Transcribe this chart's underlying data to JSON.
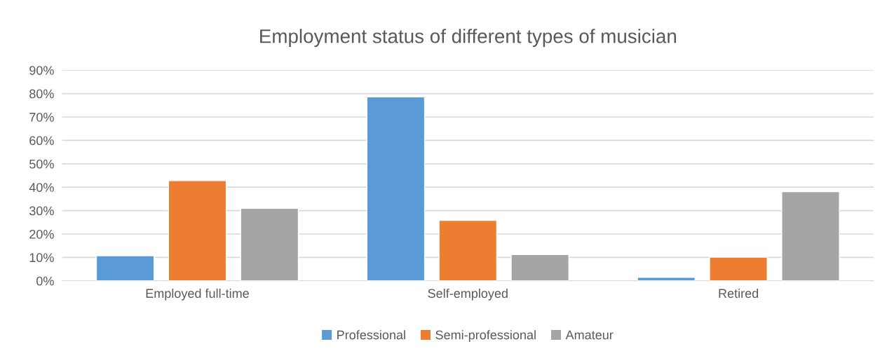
{
  "chart_data": {
    "type": "bar",
    "title": "Employment status of different types of musician",
    "categories": [
      "Employed full-time",
      "Self-employed",
      "Retired"
    ],
    "series": [
      {
        "name": "Professional",
        "color": "#5b9bd5",
        "values": [
          10.7,
          78.6,
          1.5
        ]
      },
      {
        "name": "Semi-professional",
        "color": "#ed7d31",
        "values": [
          42.8,
          25.8,
          10.1
        ]
      },
      {
        "name": "Amateur",
        "color": "#a5a5a5",
        "values": [
          31.0,
          11.2,
          38.1
        ]
      }
    ],
    "ylim": [
      0,
      90
    ],
    "yticks": [
      {
        "value": 0,
        "label": "0%"
      },
      {
        "value": 10,
        "label": "10%"
      },
      {
        "value": 20,
        "label": "20%"
      },
      {
        "value": 30,
        "label": "30%"
      },
      {
        "value": 40,
        "label": "40%"
      },
      {
        "value": 50,
        "label": "50%"
      },
      {
        "value": 60,
        "label": "60%"
      },
      {
        "value": 70,
        "label": "70%"
      },
      {
        "value": 80,
        "label": "80%"
      },
      {
        "value": 90,
        "label": "90%"
      }
    ],
    "grid": "y",
    "legend": "bottom"
  }
}
